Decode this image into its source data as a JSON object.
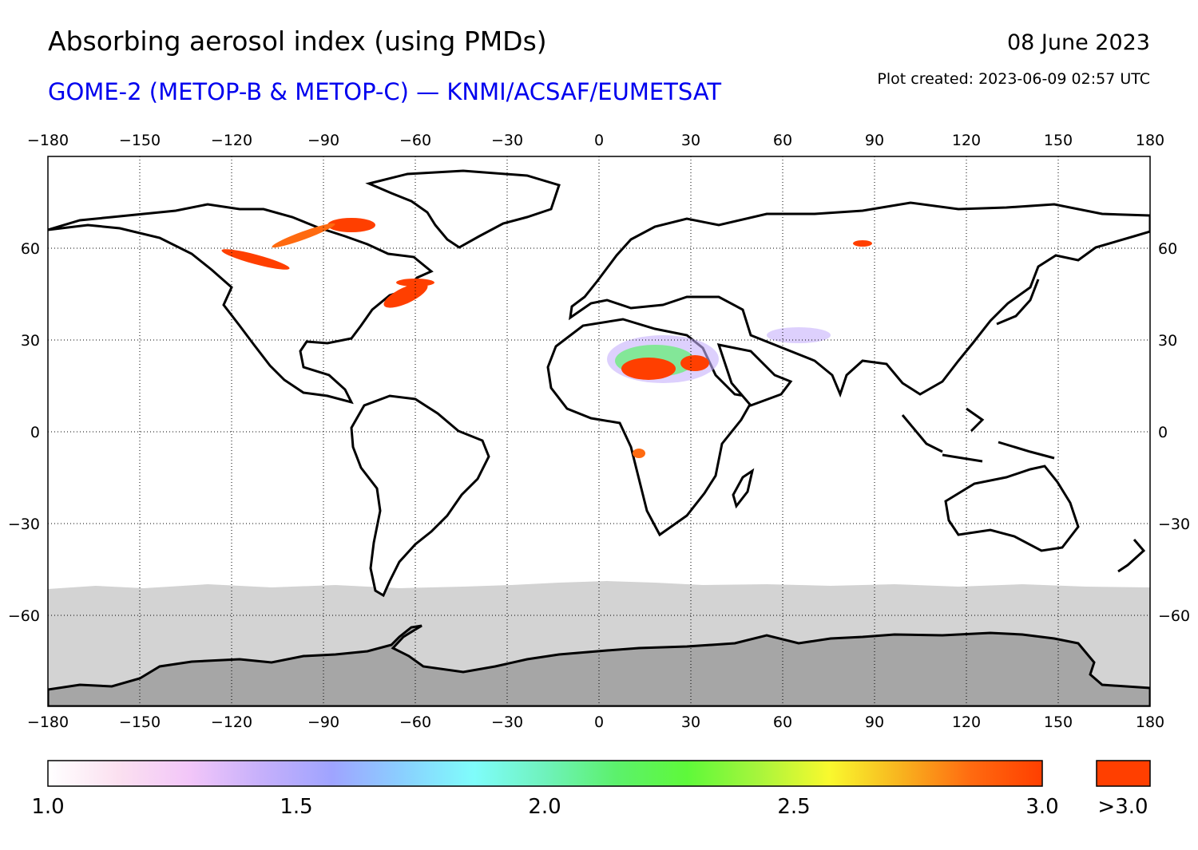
{
  "title": "Absorbing aerosol index (using PMDs)",
  "date": "08 June 2023",
  "subtitle": "GOME-2 (METOP-B & METOP-C) — KNMI/ACSAF/EUMETSAT",
  "plot_created": "Plot created: 2023-06-09 02:57 UTC",
  "colors": {
    "subtitle": "#0000ee",
    "over_range": "#ff3f00",
    "no_data_ocean": "#d3d3d3",
    "antarctica": "#a6a6a6"
  },
  "map": {
    "projection": "equirectangular",
    "lon_range": [
      -180,
      180
    ],
    "lat_range": [
      -90,
      90
    ],
    "lon_ticks": [
      "−180",
      "−150",
      "−120",
      "−90",
      "−60",
      "−30",
      "0",
      "30",
      "60",
      "90",
      "120",
      "150",
      "180"
    ],
    "lat_ticks": [
      "60",
      "30",
      "0",
      "−30",
      "−60"
    ],
    "gridlines": true
  },
  "colorbar": {
    "range": [
      1.0,
      3.0
    ],
    "ticks": [
      "1.0",
      "1.5",
      "2.0",
      "2.5",
      "3.0"
    ],
    "over_label": ">3.0",
    "stops": [
      "#ffffff",
      "#fbe0f0",
      "#f2c6f9",
      "#c6b0fb",
      "#9fa4ff",
      "#8ad0ff",
      "#7ffdfb",
      "#6ff2bc",
      "#5cf16c",
      "#5ef93a",
      "#a7f53c",
      "#f9f92e",
      "#f8b41f",
      "#ff6a10",
      "#ff3f00"
    ]
  }
}
